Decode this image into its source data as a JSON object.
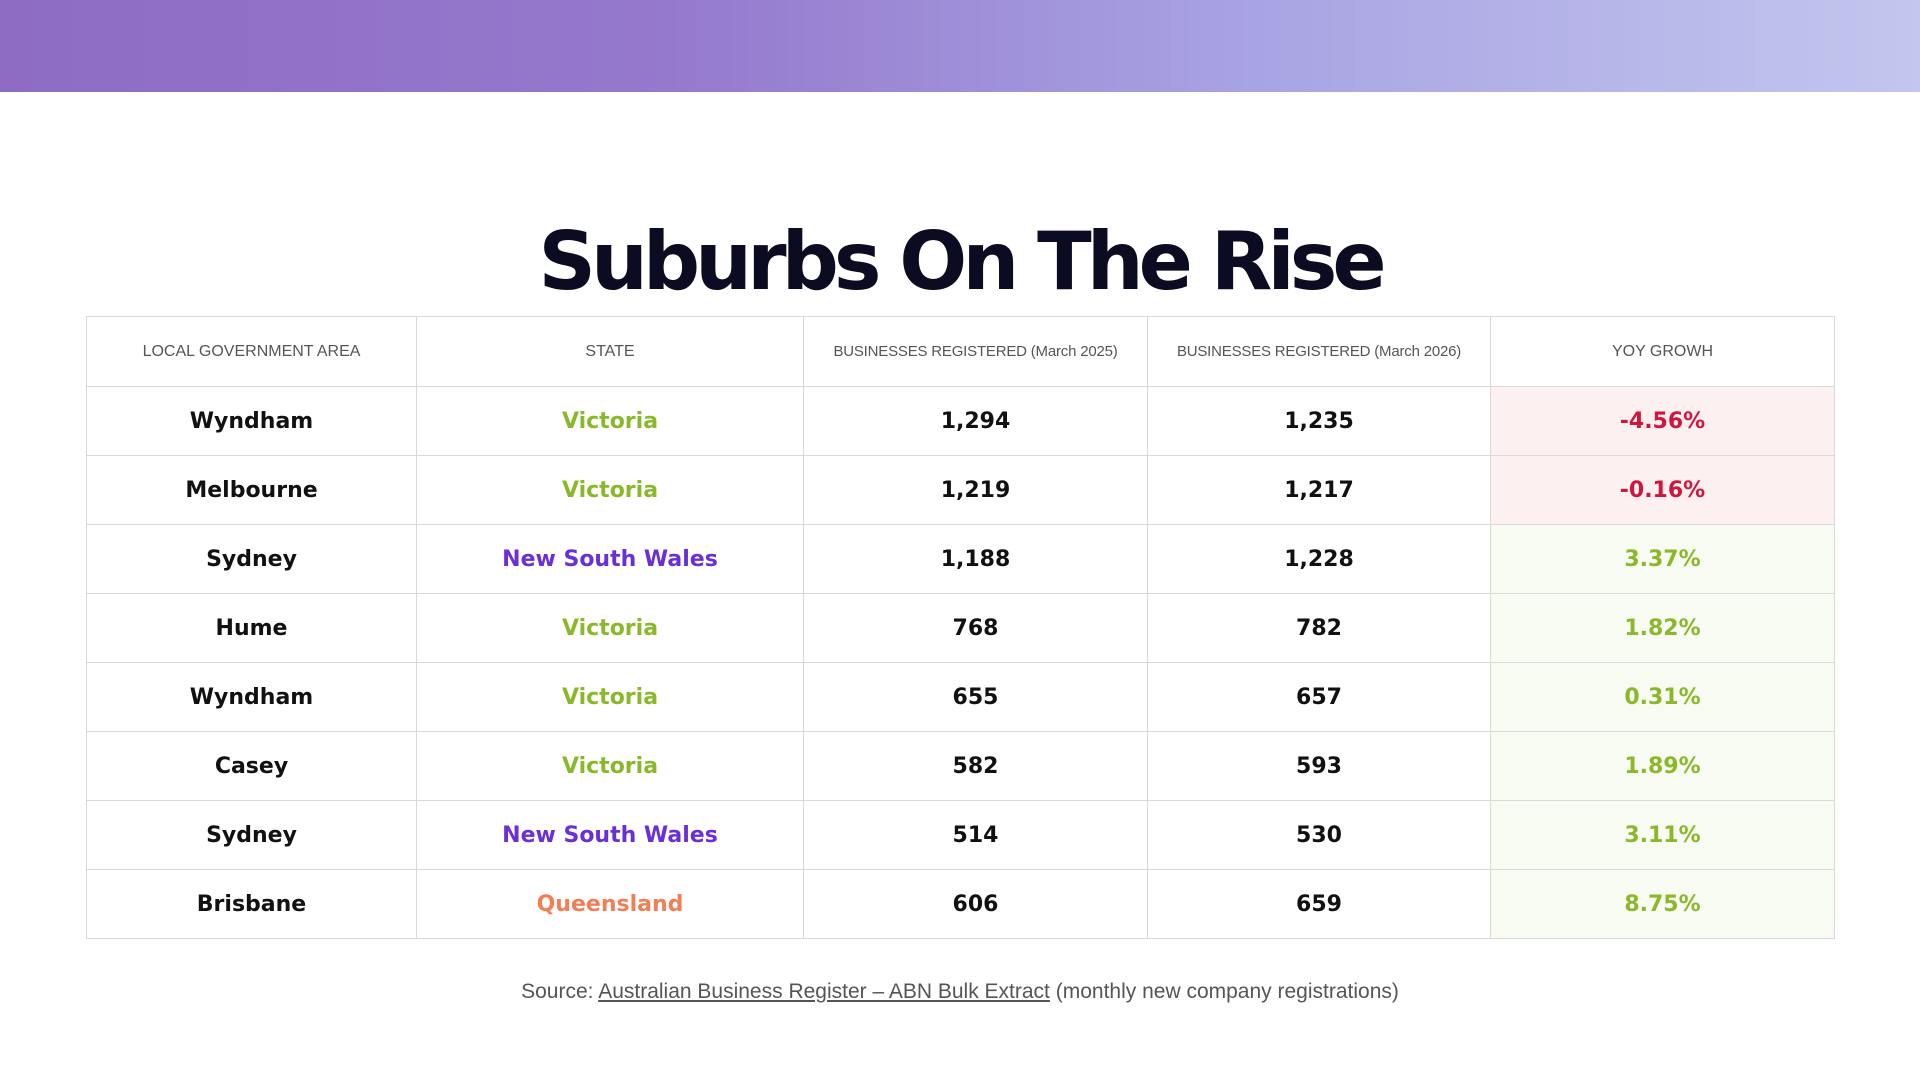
{
  "title": "Suburbs On The Rise",
  "colors": {
    "victoria": "#8ab82a",
    "nsw": "#6a2fd6",
    "queensland": "#f07f55",
    "negative_text": "#d0163e",
    "negative_bg": "#fdf0f0",
    "positive_text": "#8ab82a",
    "positive_bg": "#f8fbf1"
  },
  "table": {
    "headers": [
      "LOCAL GOVERNMENT AREA",
      "STATE",
      "BUSINESSES REGISTERED (March 2025)",
      "BUSINESSES REGISTERED (March 2026)",
      "YOY GROWH"
    ],
    "rows": [
      {
        "lga": "Wyndham",
        "state": "Victoria",
        "state_key": "victoria",
        "reg2025": "1,294",
        "reg2026": "1,235",
        "growth": "-4.56%",
        "trend": "negative"
      },
      {
        "lga": "Melbourne",
        "state": "Victoria",
        "state_key": "victoria",
        "reg2025": "1,219",
        "reg2026": "1,217",
        "growth": "-0.16%",
        "trend": "negative"
      },
      {
        "lga": "Sydney",
        "state": "New South Wales",
        "state_key": "nsw",
        "reg2025": "1,188",
        "reg2026": "1,228",
        "growth": "3.37%",
        "trend": "positive"
      },
      {
        "lga": "Hume",
        "state": "Victoria",
        "state_key": "victoria",
        "reg2025": "768",
        "reg2026": "782",
        "growth": "1.82%",
        "trend": "positive"
      },
      {
        "lga": "Wyndham",
        "state": "Victoria",
        "state_key": "victoria",
        "reg2025": "655",
        "reg2026": "657",
        "growth": "0.31%",
        "trend": "positive"
      },
      {
        "lga": "Casey",
        "state": "Victoria",
        "state_key": "victoria",
        "reg2025": "582",
        "reg2026": "593",
        "growth": "1.89%",
        "trend": "positive"
      },
      {
        "lga": "Sydney",
        "state": "New South Wales",
        "state_key": "nsw",
        "reg2025": "514",
        "reg2026": "530",
        "growth": "3.11%",
        "trend": "positive"
      },
      {
        "lga": "Brisbane",
        "state": "Queensland",
        "state_key": "queensland",
        "reg2025": "606",
        "reg2026": "659",
        "growth": "8.75%",
        "trend": "positive"
      }
    ]
  },
  "source": {
    "prefix": "Source: ",
    "link_text": "Australian Business Register – ABN Bulk Extract",
    "suffix": " (monthly new company registrations)"
  }
}
